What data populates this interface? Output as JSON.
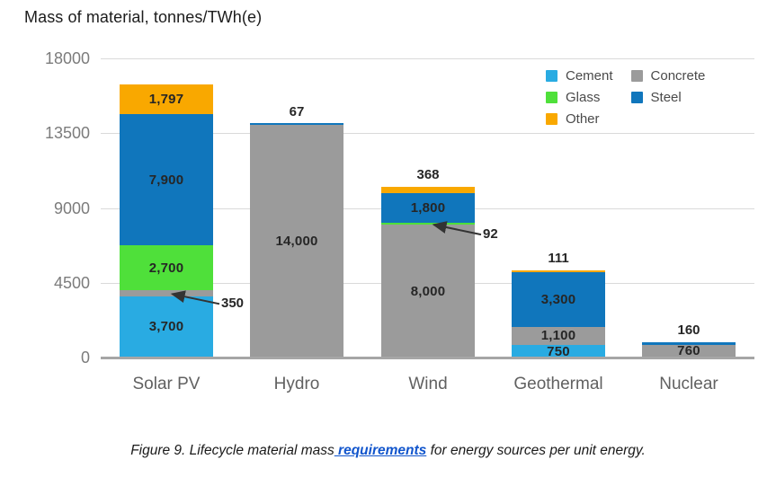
{
  "page": {
    "title": "Mass of material, tonnes/TWh(e)",
    "caption": {
      "prefix": "Figure 9. Lifecycle material mass",
      "link": " requirements",
      "suffix": " for energy sources per unit energy."
    }
  },
  "legend": {
    "items": [
      {
        "label": "Cement",
        "color": "#29ABE2"
      },
      {
        "label": "Concrete",
        "color": "#9B9B9B"
      },
      {
        "label": "Glass",
        "color": "#4FE03A"
      },
      {
        "label": "Steel",
        "color": "#1076BC"
      },
      {
        "label": "Other",
        "color": "#F9A800"
      }
    ]
  },
  "chart_data": {
    "type": "bar",
    "stacked": true,
    "title": "Mass of material, tonnes/TWh(e)",
    "ylabel": "Mass of material, tonnes/TWh(e)",
    "ylim": [
      0,
      18000
    ],
    "yticks": [
      0,
      4500,
      9000,
      13500,
      18000
    ],
    "ytick_labels": [
      "0",
      "4500",
      "9000",
      "13500",
      "18000"
    ],
    "grid": true,
    "legend_position": "top-right",
    "categories": [
      "Solar PV",
      "Hydro",
      "Wind",
      "Geothermal",
      "Nuclear"
    ],
    "colors": {
      "Cement": "#29ABE2",
      "Glass": "#4FE03A",
      "Other": "#F9A800",
      "Concrete": "#9B9B9B",
      "Steel": "#1076BC"
    },
    "bars": [
      {
        "category": "Solar PV",
        "total": 16447,
        "segments": [
          {
            "material": "Cement",
            "value": 3700,
            "label": "3,700",
            "label_style": "inside"
          },
          {
            "material": "Concrete",
            "value": 350,
            "label": "350",
            "label_style": "arrow"
          },
          {
            "material": "Glass",
            "value": 2700,
            "label": "2,700",
            "label_style": "inside"
          },
          {
            "material": "Steel",
            "value": 7900,
            "label": "7,900",
            "label_style": "inside"
          },
          {
            "material": "Other",
            "value": 1797,
            "label": "1,797",
            "label_style": "inside"
          }
        ]
      },
      {
        "category": "Hydro",
        "total": 14067,
        "segments": [
          {
            "material": "Concrete",
            "value": 14000,
            "label": "14,000",
            "label_style": "inside"
          },
          {
            "material": "Steel",
            "value": 67,
            "label": "67",
            "label_style": "above"
          }
        ]
      },
      {
        "category": "Wind",
        "total": 10260,
        "segments": [
          {
            "material": "Concrete",
            "value": 8000,
            "label": "8,000",
            "label_style": "inside"
          },
          {
            "material": "Glass",
            "value": 92,
            "label": "92",
            "label_style": "arrow"
          },
          {
            "material": "Steel",
            "value": 1800,
            "label": "1,800",
            "label_style": "inside"
          },
          {
            "material": "Other",
            "value": 368,
            "label": "368",
            "label_style": "above"
          }
        ]
      },
      {
        "category": "Geothermal",
        "total": 5261,
        "segments": [
          {
            "material": "Cement",
            "value": 750,
            "label": "750",
            "label_style": "inside"
          },
          {
            "material": "Concrete",
            "value": 1100,
            "label": "1,100",
            "label_style": "inside"
          },
          {
            "material": "Steel",
            "value": 3300,
            "label": "3,300",
            "label_style": "inside"
          },
          {
            "material": "Other",
            "value": 111,
            "label": "111",
            "label_style": "above"
          }
        ]
      },
      {
        "category": "Nuclear",
        "total": 920,
        "segments": [
          {
            "material": "Concrete",
            "value": 760,
            "label": "760",
            "label_style": "inside"
          },
          {
            "material": "Steel",
            "value": 160,
            "label": "160",
            "label_style": "above"
          }
        ]
      }
    ]
  }
}
